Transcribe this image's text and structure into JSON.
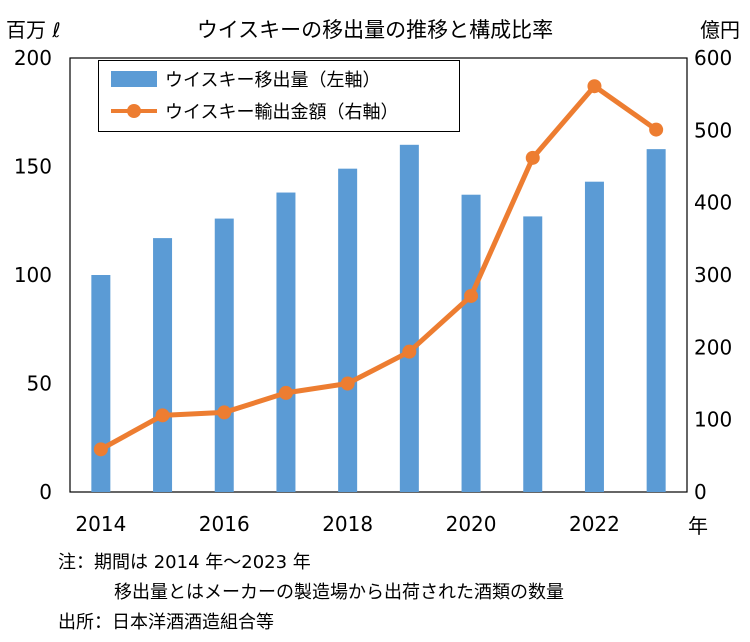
{
  "chart_data": {
    "type": "bar+line",
    "title": "ウイスキーの移出量の推移と構成比率",
    "left_axis_unit": "百万 ℓ",
    "right_axis_unit": "億円",
    "x_axis_unit": "年",
    "x": [
      2014,
      2015,
      2016,
      2017,
      2018,
      2019,
      2020,
      2021,
      2022,
      2023
    ],
    "x_tick_labels": [
      "2014",
      "2016",
      "2018",
      "2020",
      "2022"
    ],
    "left_ylim": [
      0,
      200
    ],
    "left_ticks": [
      0,
      50,
      100,
      150,
      200
    ],
    "right_ylim": [
      0,
      600
    ],
    "right_ticks": [
      0,
      100,
      200,
      300,
      400,
      500,
      600
    ],
    "series": [
      {
        "name": "ウイスキー移出量（左軸）",
        "type": "bar",
        "axis": "left",
        "color": "#5b9bd5",
        "values": [
          100,
          117,
          126,
          138,
          149,
          160,
          137,
          127,
          143,
          158
        ]
      },
      {
        "name": "ウイスキー輸出金額（右軸）",
        "type": "line",
        "axis": "right",
        "color": "#ed7d31",
        "values": [
          59,
          106,
          110,
          137,
          150,
          194,
          271,
          462,
          561,
          501
        ]
      }
    ],
    "legend_position": "top-left",
    "grid": false
  },
  "notes": {
    "line1": "注：期間は 2014 年～2023 年",
    "line2": "移出量とはメーカーの製造場から出荷された酒類の数量",
    "line3": "出所：日本洋酒酒造組合等"
  }
}
